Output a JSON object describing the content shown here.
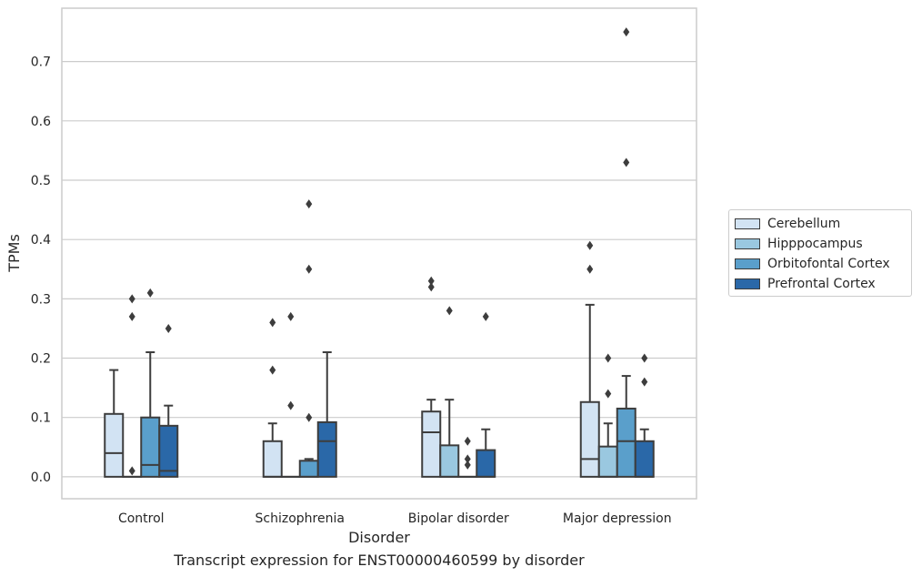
{
  "caption": "Transcript expression for ENST00000460599 by disorder",
  "chart_data": {
    "type": "boxplot",
    "xlabel": "Disorder",
    "ylabel": "TPMs",
    "ylim": [
      -0.037,
      0.79
    ],
    "yticks": [
      0.0,
      0.1,
      0.2,
      0.3,
      0.4,
      0.5,
      0.6,
      0.7
    ],
    "ytick_labels": [
      "0.0",
      "0.1",
      "0.2",
      "0.3",
      "0.4",
      "0.5",
      "0.6",
      "0.7"
    ],
    "grid": true,
    "legend_position": "right",
    "categories": [
      "Control",
      "Schizophrenia",
      "Bipolar disorder",
      "Major depression"
    ],
    "series": [
      {
        "name": "Cerebellum",
        "color": "#d2e3f3",
        "boxes": [
          {
            "q1": 0.0,
            "median": 0.04,
            "q3": 0.106,
            "whisker_low": 0.0,
            "whisker_high": 0.18,
            "outliers": []
          },
          {
            "q1": 0.0,
            "median": 0.0,
            "q3": 0.06,
            "whisker_low": 0.0,
            "whisker_high": 0.09,
            "outliers": [
              0.18,
              0.26
            ]
          },
          {
            "q1": 0.0,
            "median": 0.075,
            "q3": 0.11,
            "whisker_low": 0.0,
            "whisker_high": 0.13,
            "outliers": [
              0.32,
              0.33
            ]
          },
          {
            "q1": 0.0,
            "median": 0.03,
            "q3": 0.126,
            "whisker_low": 0.0,
            "whisker_high": 0.29,
            "outliers": [
              0.35,
              0.39
            ]
          }
        ]
      },
      {
        "name": "Hipppocampus",
        "color": "#9ac8e0",
        "boxes": [
          {
            "q1": 0.0,
            "median": 0.0,
            "q3": 0.0,
            "whisker_low": 0.0,
            "whisker_high": 0.0,
            "outliers": [
              0.01,
              0.27,
              0.3
            ]
          },
          {
            "q1": 0.0,
            "median": 0.0,
            "q3": 0.0,
            "whisker_low": 0.0,
            "whisker_high": 0.0,
            "outliers": [
              0.12,
              0.27
            ]
          },
          {
            "q1": 0.0,
            "median": 0.0,
            "q3": 0.053,
            "whisker_low": 0.0,
            "whisker_high": 0.13,
            "outliers": [
              0.28
            ]
          },
          {
            "q1": 0.0,
            "median": 0.0,
            "q3": 0.051,
            "whisker_low": 0.0,
            "whisker_high": 0.09,
            "outliers": [
              0.14,
              0.2
            ]
          }
        ]
      },
      {
        "name": "Orbitofontal Cortex",
        "color": "#5a9fcb",
        "boxes": [
          {
            "q1": 0.0,
            "median": 0.02,
            "q3": 0.1,
            "whisker_low": 0.0,
            "whisker_high": 0.21,
            "outliers": [
              0.31
            ]
          },
          {
            "q1": 0.0,
            "median": 0.0,
            "q3": 0.027,
            "whisker_low": 0.0,
            "whisker_high": 0.03,
            "outliers": [
              0.1,
              0.35,
              0.46
            ]
          },
          {
            "q1": 0.0,
            "median": 0.0,
            "q3": 0.0,
            "whisker_low": 0.0,
            "whisker_high": 0.0,
            "outliers": [
              0.02,
              0.03,
              0.06
            ]
          },
          {
            "q1": 0.0,
            "median": 0.06,
            "q3": 0.115,
            "whisker_low": 0.0,
            "whisker_high": 0.17,
            "outliers": [
              0.53,
              0.75
            ]
          }
        ]
      },
      {
        "name": "Prefrontal Cortex",
        "color": "#2a68a8",
        "boxes": [
          {
            "q1": 0.0,
            "median": 0.01,
            "q3": 0.086,
            "whisker_low": 0.0,
            "whisker_high": 0.12,
            "outliers": [
              0.25
            ]
          },
          {
            "q1": 0.0,
            "median": 0.06,
            "q3": 0.092,
            "whisker_low": 0.0,
            "whisker_high": 0.21,
            "outliers": []
          },
          {
            "q1": 0.0,
            "median": 0.0,
            "q3": 0.045,
            "whisker_low": 0.0,
            "whisker_high": 0.08,
            "outliers": [
              0.27
            ]
          },
          {
            "q1": 0.0,
            "median": 0.0,
            "q3": 0.06,
            "whisker_low": 0.0,
            "whisker_high": 0.08,
            "outliers": [
              0.16,
              0.2
            ]
          }
        ]
      }
    ]
  }
}
